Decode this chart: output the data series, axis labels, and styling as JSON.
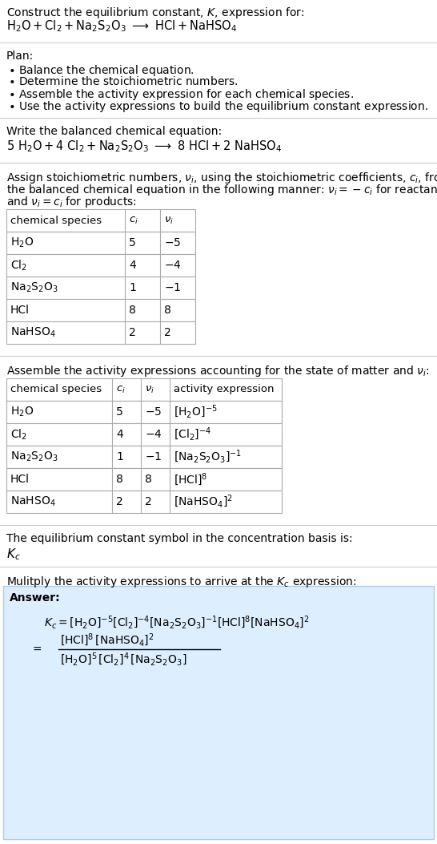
{
  "bg_color": "#ffffff",
  "text_color": "#000000",
  "answer_bg": "#ddeeff",
  "answer_border": "#aaccee",
  "section_line_color": "#cccccc",
  "table_line_color": "#aaaaaa",
  "font_size": 10.0,
  "fig_width": 5.46,
  "fig_height": 10.53,
  "dpi": 100
}
